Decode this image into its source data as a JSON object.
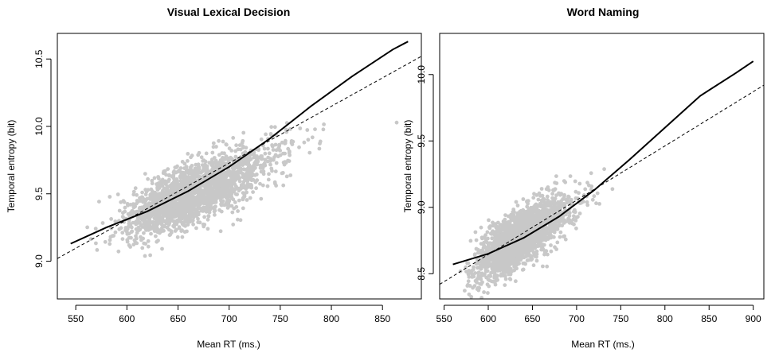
{
  "chart_data": [
    {
      "type": "scatter",
      "title": "Visual Lexical Decision",
      "xlabel": "Mean RT (ms.)",
      "ylabel": "Temporal entropy (bit)",
      "xlim": [
        532,
        888
      ],
      "ylim": [
        8.72,
        10.69
      ],
      "xticks": [
        550,
        600,
        650,
        700,
        750,
        800,
        850
      ],
      "yticks": [
        9.0,
        9.5,
        10.0,
        10.5
      ],
      "ytick_labels": [
        "9.0",
        "9.5",
        "10.0",
        "10.5"
      ],
      "point_color": "#c8c8c8",
      "series": [
        {
          "kind": "points",
          "x_center": 650,
          "x_sd": 45,
          "intercept": 7.38,
          "slope": 0.0032,
          "noise_sd": 0.11,
          "n": 2200,
          "x_range": [
            545,
            872
          ]
        },
        {
          "kind": "smooth",
          "x": [
            545,
            580,
            620,
            660,
            700,
            740,
            780,
            820,
            860,
            875
          ],
          "y": [
            9.13,
            9.25,
            9.37,
            9.52,
            9.7,
            9.91,
            10.15,
            10.37,
            10.57,
            10.63
          ]
        },
        {
          "kind": "linear",
          "x": [
            532,
            888
          ],
          "y": [
            9.02,
            10.52
          ]
        }
      ],
      "grid": false
    },
    {
      "type": "scatter",
      "title": "Word Naming",
      "xlabel": "Mean RT (ms.)",
      "ylabel": "Temporal entropy (bit)",
      "xlim": [
        545,
        912
      ],
      "ylim": [
        8.31,
        10.31
      ],
      "xticks": [
        550,
        600,
        650,
        700,
        750,
        800,
        850,
        900
      ],
      "yticks": [
        8.5,
        9.0,
        9.5,
        10.0
      ],
      "ytick_labels": [
        "8.5",
        "9.0",
        "9.5",
        "10.0"
      ],
      "point_color": "#c8c8c8",
      "series": [
        {
          "kind": "points",
          "x_center": 625,
          "x_sd": 32,
          "intercept": 6.1,
          "slope": 0.0042,
          "noise_sd": 0.1,
          "n": 2200,
          "x_range": [
            562,
            900
          ]
        },
        {
          "kind": "smooth",
          "x": [
            560,
            600,
            640,
            680,
            720,
            760,
            800,
            840,
            880,
            900
          ],
          "y": [
            8.57,
            8.65,
            8.77,
            8.93,
            9.13,
            9.36,
            9.6,
            9.84,
            10.01,
            10.1
          ]
        },
        {
          "kind": "linear",
          "x": [
            545,
            912
          ],
          "y": [
            8.42,
            9.92
          ]
        }
      ],
      "grid": false
    }
  ]
}
